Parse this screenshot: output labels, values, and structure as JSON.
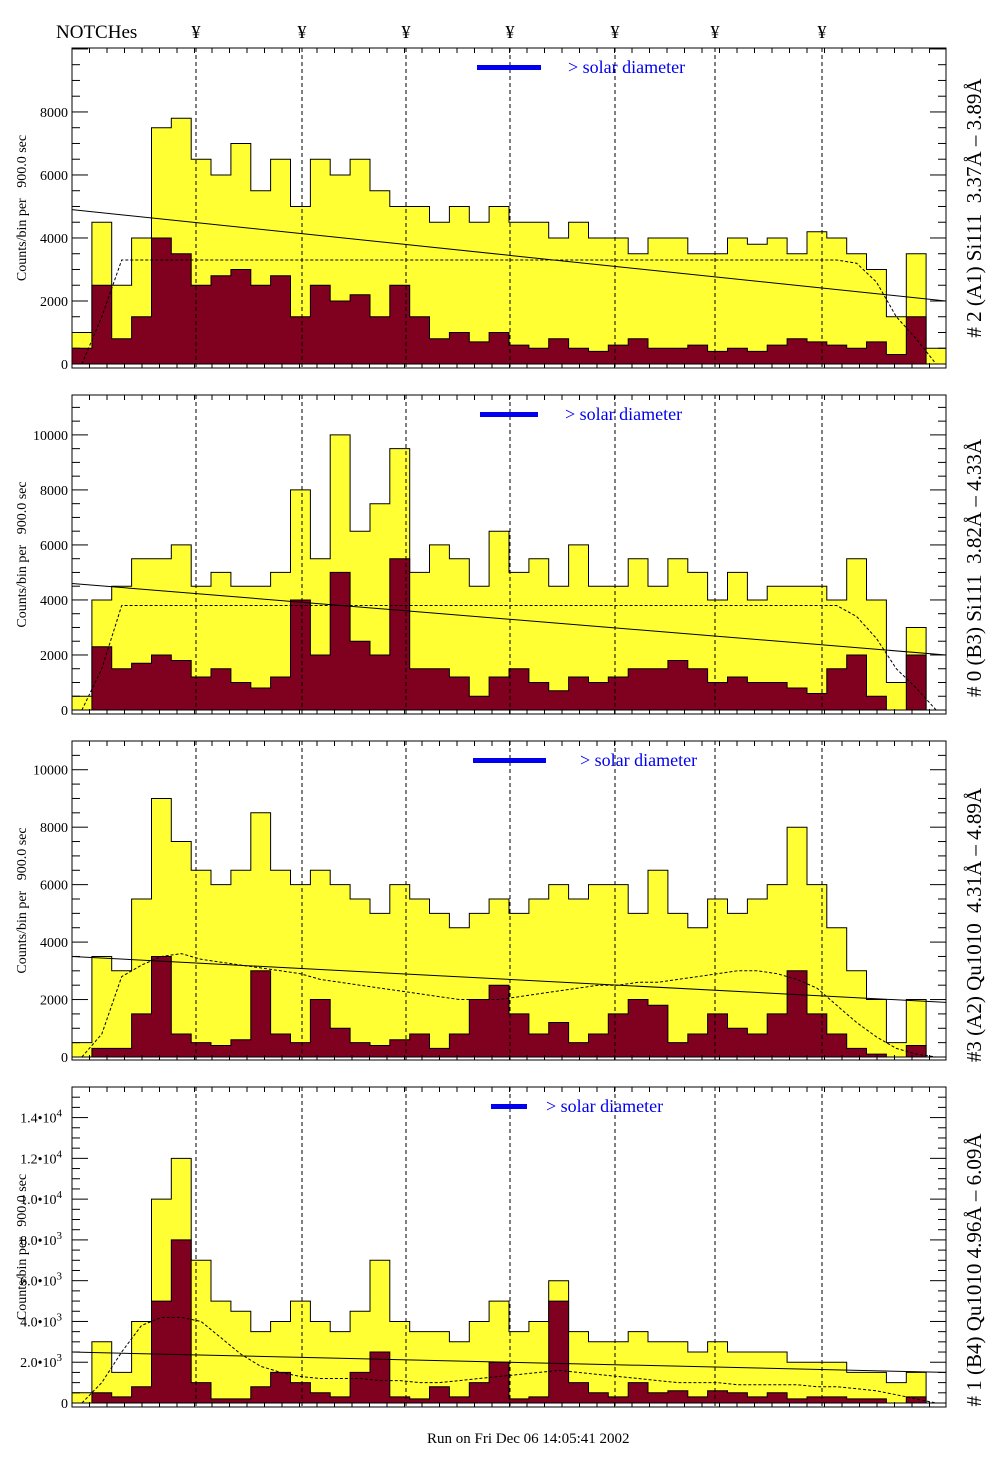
{
  "header": {
    "notches_label": "NOTCHes",
    "notch_symbol": "¥",
    "notch_count": 7
  },
  "footer": {
    "run_text": "Run on Fri Dec 06 14:05:41 2002"
  },
  "colors": {
    "total": "#ffff33",
    "subset": "#800020",
    "legend_bar": "#0000ee",
    "legend_text": "#0000ee"
  },
  "chart_data": {
    "type": "bar",
    "title": "",
    "xlabel": "",
    "x": "bin index 0-43",
    "legend": {
      "label": "> solar diameter",
      "placement": "top-center"
    },
    "panels": [
      {
        "name": "# 2 (A1) Si111  3.37Å – 3.89Å",
        "ylabel": "Counts/bin per   900.0 sec",
        "ylim": [
          0,
          10030
        ],
        "yticks": [
          {
            "v": 0,
            "label": "0"
          },
          {
            "v": 2000,
            "label": "2000"
          },
          {
            "v": 4000,
            "label": "4000"
          },
          {
            "v": 6000,
            "label": "6000"
          },
          {
            "v": 8000,
            "label": "8000"
          }
        ],
        "total": [
          1000,
          4500,
          2500,
          4000,
          7500,
          7800,
          6500,
          6000,
          7000,
          5500,
          6500,
          5000,
          6500,
          6000,
          6500,
          5500,
          5000,
          5000,
          4500,
          5000,
          4500,
          5000,
          4500,
          4500,
          4000,
          4500,
          4000,
          4000,
          3500,
          4000,
          4000,
          3500,
          3500,
          4000,
          3800,
          4000,
          3500,
          4200,
          4000,
          3500,
          3000,
          1500,
          3500,
          500
        ],
        "subset": [
          500,
          2500,
          800,
          1500,
          4000,
          3500,
          2500,
          2800,
          3000,
          2500,
          2800,
          1500,
          2500,
          2000,
          2200,
          1500,
          2500,
          1500,
          800,
          1000,
          700,
          1000,
          600,
          500,
          800,
          500,
          400,
          600,
          800,
          500,
          500,
          600,
          400,
          500,
          400,
          600,
          800,
          700,
          600,
          500,
          700,
          300,
          1500,
          0
        ],
        "fit_dashed": [
          0,
          1500,
          3300,
          3300,
          3300,
          3300,
          3300,
          3300,
          3300,
          3300,
          3300,
          3300,
          3300,
          3300,
          3300,
          3300,
          3300,
          3300,
          3300,
          3300,
          3300,
          3300,
          3300,
          3300,
          3300,
          3300,
          3300,
          3300,
          3300,
          3300,
          3300,
          3300,
          3300,
          3300,
          3300,
          3300,
          3300,
          3300,
          3300,
          3200,
          2600,
          1500,
          800,
          0
        ],
        "fit_solid": [
          4900,
          2000
        ]
      },
      {
        "name": "# 0 (B3) Si111  3.82Å – 4.33Å",
        "ylabel": "Counts/bin per   900.0 sec",
        "ylim": [
          0,
          11450
        ],
        "yticks": [
          {
            "v": 0,
            "label": "0"
          },
          {
            "v": 2000,
            "label": "2000"
          },
          {
            "v": 4000,
            "label": "4000"
          },
          {
            "v": 6000,
            "label": "6000"
          },
          {
            "v": 8000,
            "label": "8000"
          },
          {
            "v": 10000,
            "label": "10000"
          }
        ],
        "total": [
          500,
          4000,
          4500,
          5500,
          5500,
          6000,
          4500,
          5000,
          4500,
          4500,
          5000,
          8000,
          5500,
          10000,
          6500,
          7500,
          9500,
          5000,
          6000,
          5500,
          4500,
          6500,
          5000,
          5500,
          4500,
          6000,
          4500,
          4500,
          5500,
          4500,
          5500,
          5000,
          4000,
          5000,
          4000,
          4500,
          4500,
          4500,
          4000,
          5500,
          4000,
          1000,
          3000,
          0
        ],
        "subset": [
          0,
          2300,
          1500,
          1700,
          2000,
          1800,
          1200,
          1500,
          1000,
          800,
          1200,
          4000,
          2000,
          5000,
          2500,
          2000,
          5500,
          1500,
          1500,
          1200,
          500,
          1200,
          1500,
          1000,
          700,
          1200,
          1000,
          1200,
          1500,
          1500,
          1800,
          1500,
          1000,
          1200,
          1000,
          1000,
          800,
          600,
          1500,
          2000,
          500,
          0,
          2000,
          0
        ],
        "fit_dashed": [
          0,
          1500,
          3800,
          3800,
          3800,
          3800,
          3800,
          3800,
          3800,
          3800,
          3800,
          3800,
          3800,
          3800,
          3800,
          3800,
          3800,
          3800,
          3800,
          3800,
          3800,
          3800,
          3800,
          3800,
          3800,
          3800,
          3800,
          3800,
          3800,
          3800,
          3800,
          3800,
          3800,
          3800,
          3800,
          3800,
          3800,
          3800,
          3800,
          3400,
          2600,
          1500,
          800,
          0
        ],
        "fit_solid": [
          4600,
          2000
        ]
      },
      {
        "name": "#3 (A2) Qu1010  4.31Å – 4.89Å",
        "ylabel": "Counts/bin per   900.0 sec",
        "ylim": [
          0,
          11000
        ],
        "yticks": [
          {
            "v": 0,
            "label": "0"
          },
          {
            "v": 2000,
            "label": "2000"
          },
          {
            "v": 4000,
            "label": "4000"
          },
          {
            "v": 6000,
            "label": "6000"
          },
          {
            "v": 8000,
            "label": "8000"
          },
          {
            "v": 10000,
            "label": "10000"
          }
        ],
        "total": [
          500,
          3500,
          3000,
          5500,
          9000,
          7500,
          6500,
          6000,
          6500,
          8500,
          6500,
          6000,
          6500,
          6000,
          5500,
          5000,
          6000,
          5500,
          5000,
          4500,
          5000,
          5500,
          5000,
          5500,
          6000,
          5500,
          6000,
          6000,
          5000,
          6500,
          5000,
          4500,
          5500,
          5000,
          5500,
          6000,
          8000,
          6000,
          4500,
          3000,
          2000,
          500,
          2000,
          0
        ],
        "subset": [
          0,
          300,
          300,
          1500,
          3500,
          800,
          500,
          400,
          600,
          3000,
          800,
          500,
          2000,
          1000,
          500,
          400,
          600,
          800,
          300,
          800,
          2000,
          2500,
          1500,
          800,
          1200,
          500,
          800,
          1500,
          2000,
          1800,
          500,
          800,
          1500,
          1000,
          800,
          1500,
          3000,
          1500,
          800,
          300,
          100,
          0,
          400,
          0
        ],
        "fit_dashed": [
          0,
          800,
          2800,
          3200,
          3500,
          3600,
          3400,
          3300,
          3200,
          3100,
          3000,
          2900,
          2700,
          2600,
          2500,
          2400,
          2300,
          2200,
          2100,
          2000,
          2000,
          2000,
          2100,
          2200,
          2300,
          2400,
          2500,
          2500,
          2600,
          2600,
          2700,
          2800,
          2900,
          3000,
          3000,
          2900,
          2700,
          2400,
          1800,
          1200,
          700,
          300,
          100,
          0
        ],
        "fit_solid": [
          3500,
          1900
        ]
      },
      {
        "name": "# 1 (B4) Qu1010 4.96Å – 6.09Å",
        "ylabel": "Counts/bin per   900.0 sec",
        "ylim": [
          0,
          15500
        ],
        "yticks": [
          {
            "v": 0,
            "label": "0",
            "exp": ""
          },
          {
            "v": 2000,
            "label": "2.0•10",
            "exp": "3"
          },
          {
            "v": 4000,
            "label": "4.0•10",
            "exp": "3"
          },
          {
            "v": 6000,
            "label": "6.0•10",
            "exp": "3"
          },
          {
            "v": 8000,
            "label": "8.0•10",
            "exp": "3"
          },
          {
            "v": 10000,
            "label": "1.0•10",
            "exp": "4"
          },
          {
            "v": 12000,
            "label": "1.2•10",
            "exp": "4"
          },
          {
            "v": 14000,
            "label": "1.4•10",
            "exp": "4"
          }
        ],
        "total": [
          500,
          3000,
          1500,
          4000,
          10000,
          12000,
          7000,
          5000,
          4500,
          3500,
          4000,
          5000,
          4000,
          3500,
          4500,
          7000,
          4000,
          3500,
          3500,
          3000,
          4000,
          5000,
          3500,
          4000,
          6000,
          3500,
          3000,
          3000,
          3500,
          3000,
          3000,
          2500,
          3000,
          2500,
          2500,
          2500,
          2000,
          2000,
          2000,
          1500,
          1500,
          1000,
          1500,
          0
        ],
        "subset": [
          0,
          500,
          300,
          800,
          5000,
          8000,
          1000,
          200,
          200,
          800,
          1500,
          1000,
          500,
          300,
          1500,
          2500,
          300,
          200,
          800,
          300,
          1000,
          2000,
          200,
          300,
          5000,
          1000,
          500,
          300,
          1000,
          500,
          600,
          300,
          600,
          500,
          300,
          500,
          200,
          300,
          300,
          200,
          200,
          0,
          300,
          0
        ],
        "fit_dashed": [
          0,
          1000,
          2500,
          3800,
          4200,
          4200,
          4000,
          3200,
          2400,
          1800,
          1500,
          1300,
          1200,
          1200,
          1200,
          1100,
          1100,
          1000,
          1000,
          1100,
          1200,
          1300,
          1400,
          1500,
          1600,
          1500,
          1400,
          1300,
          1200,
          1100,
          1000,
          1000,
          1000,
          900,
          900,
          900,
          900,
          800,
          800,
          700,
          600,
          400,
          200,
          0
        ],
        "fit_solid": [
          2500,
          1500
        ]
      }
    ]
  }
}
